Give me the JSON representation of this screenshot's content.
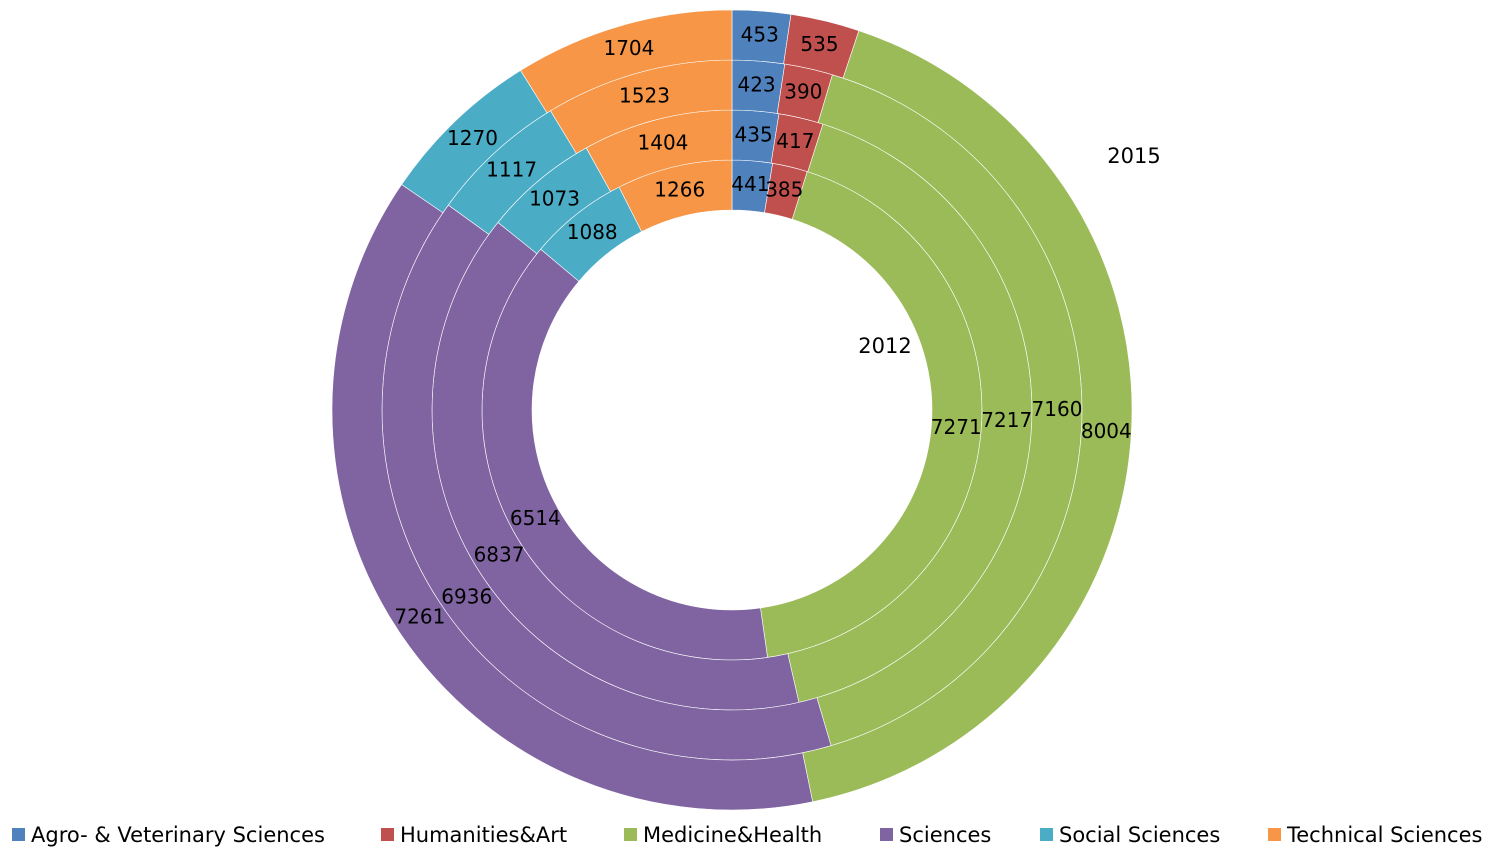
{
  "chart_data": {
    "type": "doughnut",
    "categories": [
      "Agro- & Veterinary Sciences",
      "Humanities&Art",
      "Medicine&Health",
      "Sciences",
      "Social Sciences",
      "Technical Sciences"
    ],
    "colors": [
      "#4f81bd",
      "#c0504d",
      "#9bbb59",
      "#8064a2",
      "#4bacc6",
      "#f79646"
    ],
    "series": [
      {
        "name": "2012",
        "values": [
          441,
          385,
          7271,
          6514,
          1088,
          1266
        ]
      },
      {
        "name": null,
        "values": [
          435,
          417,
          7217,
          6837,
          1073,
          1404
        ]
      },
      {
        "name": null,
        "values": [
          423,
          390,
          7160,
          6936,
          1117,
          1523
        ]
      },
      {
        "name": "2015",
        "values": [
          453,
          535,
          8004,
          7261,
          1270,
          1704
        ]
      }
    ],
    "legend": "bottom"
  }
}
